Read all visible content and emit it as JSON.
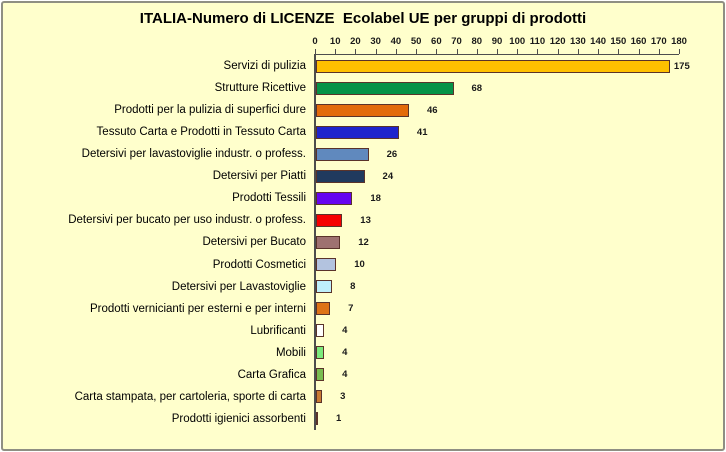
{
  "window": {
    "background_color": "#FFFFCC",
    "frame_border_color": "#8F8F83",
    "axis_color": "#4D4D4D",
    "bar_border_color": "#5A332A",
    "text_color": "#000000"
  },
  "chart_data": {
    "type": "bar",
    "orientation": "horizontal",
    "title": "ITALIA-Numero di LICENZE  Ecolabel UE per gruppi di prodotti",
    "xlabel": "",
    "ylabel": "",
    "axis_position": "top",
    "xlim": [
      0,
      180
    ],
    "x_ticks": [
      0,
      10,
      20,
      30,
      40,
      50,
      60,
      70,
      80,
      90,
      100,
      110,
      120,
      130,
      140,
      150,
      160,
      170,
      180
    ],
    "grid": false,
    "legend": false,
    "value_labels": "outside-end",
    "categories": [
      "Servizi di pulizia",
      "Strutture Ricettive",
      "Prodotti per la pulizia di superfici dure",
      "Tessuto Carta e Prodotti in Tessuto Carta",
      "Detersivi per lavastoviglie industr. o profess.",
      "Detersivi per Piatti",
      "Prodotti Tessili",
      "Detersivi per bucato per uso industr. o profess.",
      "Detersivi per Bucato",
      "Prodotti Cosmetici",
      "Detersivi per Lavastoviglie",
      "Prodotti vernicianti per esterni e per interni",
      "Lubrificanti",
      "Mobili",
      "Carta Grafica",
      "Carta stampata, per cartoleria, sporte di carta",
      "Prodotti igienici assorbenti"
    ],
    "values": [
      175,
      68,
      46,
      41,
      26,
      24,
      18,
      13,
      12,
      10,
      8,
      7,
      4,
      4,
      4,
      3,
      1
    ],
    "bar_colors": [
      "#FFC000",
      "#069247",
      "#E36B0A",
      "#1F24CC",
      "#6089BE",
      "#203A5E",
      "#6505EF",
      "#F60000",
      "#9E7170",
      "#B3C3DF",
      "#BEEFFB",
      "#DE7317",
      "#FFFFFF",
      "#7BE97B",
      "#79BC50",
      "#C97A33",
      "#6B6194"
    ]
  }
}
